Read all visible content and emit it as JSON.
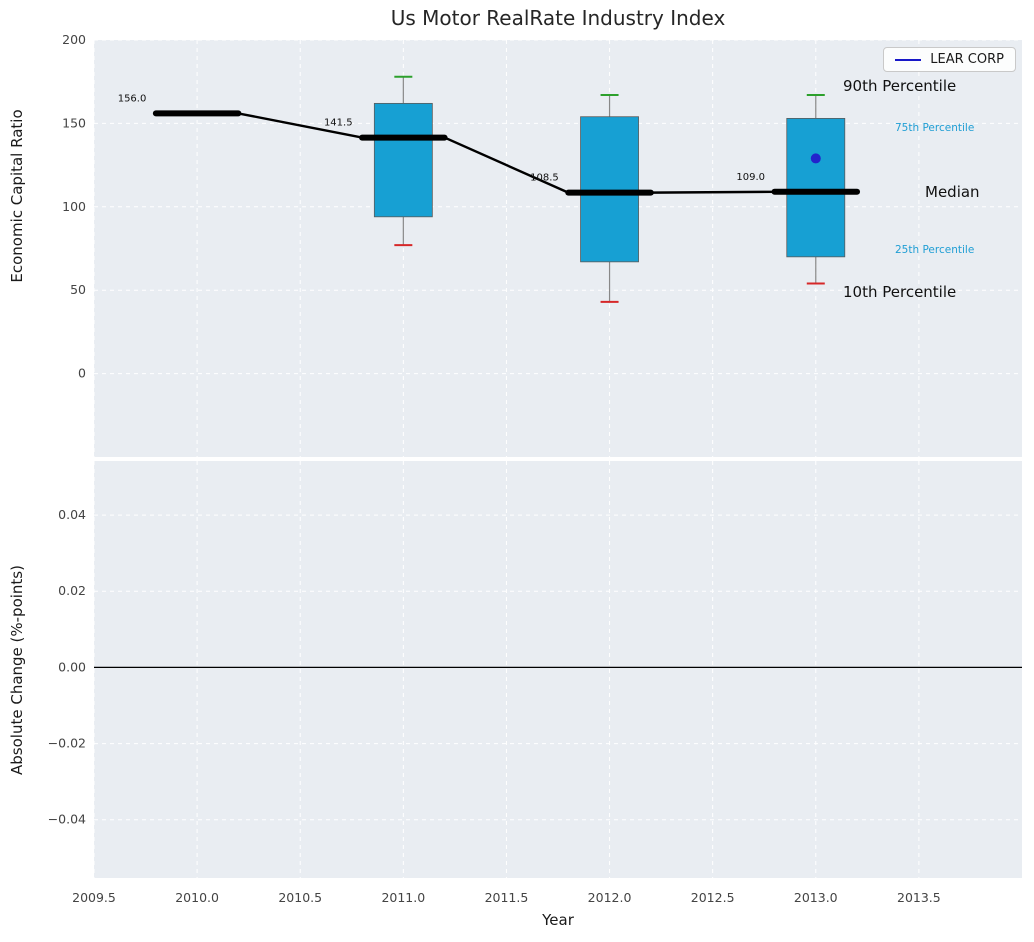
{
  "title": "Us Motor RealRate Industry Index",
  "legend": {
    "series_label": "LEAR CORP",
    "line_color": "#1818c8"
  },
  "colors": {
    "axes_bg": "#e9edf2",
    "grid": "#ffffff",
    "tick_text": "#444444",
    "label_text": "#1a1a1a",
    "box_fill": "#17a0d3",
    "box_edge": "#5a5a5a",
    "whisker": "#888888",
    "cap_high": "#2ca02c",
    "cap_low": "#d62728",
    "median_line": "#000000",
    "lear_point": "#2323cc",
    "percentile_accent": "#1f9ed4",
    "annotation_text": "#111111"
  },
  "chart_data": [
    {
      "type": "boxplot",
      "panel": "top",
      "title": "Us Motor RealRate Industry Index",
      "ylabel": "Economic Capital Ratio",
      "xlim": [
        2009.5,
        2014.0
      ],
      "ylim": [
        -50,
        200
      ],
      "grid": true,
      "legend_position": "upper right",
      "yticks": [
        {
          "v": 200,
          "label": "200"
        },
        {
          "v": 150,
          "label": "150"
        },
        {
          "v": 100,
          "label": "100"
        },
        {
          "v": 50,
          "label": "50"
        },
        {
          "v": 0,
          "label": "0"
        }
      ],
      "xticks": [
        {
          "v": 2009.5,
          "label": "2009.5"
        },
        {
          "v": 2010.0,
          "label": "2010.0"
        },
        {
          "v": 2010.5,
          "label": "2010.5"
        },
        {
          "v": 2011.0,
          "label": "2011.0"
        },
        {
          "v": 2011.5,
          "label": "2011.5"
        },
        {
          "v": 2012.0,
          "label": "2012.0"
        },
        {
          "v": 2012.5,
          "label": "2012.5"
        },
        {
          "v": 2013.0,
          "label": "2013.0"
        },
        {
          "v": 2013.5,
          "label": "2013.5"
        }
      ],
      "boxes": [
        {
          "year": 2010,
          "median": 156.0,
          "label": "156.0",
          "q1": null,
          "q3": null,
          "whisker_low": null,
          "whisker_high": null
        },
        {
          "year": 2011,
          "median": 141.5,
          "label": "141.5",
          "q1": 94,
          "q3": 162,
          "whisker_low": 77,
          "whisker_high": 178
        },
        {
          "year": 2012,
          "median": 108.5,
          "label": "108.5",
          "q1": 67,
          "q3": 154,
          "whisker_low": 43,
          "whisker_high": 167
        },
        {
          "year": 2013,
          "median": 109.0,
          "label": "109.0",
          "q1": 70,
          "q3": 153,
          "whisker_low": 54,
          "whisker_high": 167
        }
      ],
      "lear_corp": {
        "year": 2013,
        "value": 129
      },
      "percentile_labels": [
        {
          "text": "90th Percentile",
          "style": "large"
        },
        {
          "text": "75th Percentile",
          "style": "small-accent"
        },
        {
          "text": "Median",
          "style": "large"
        },
        {
          "text": "25th Percentile",
          "style": "small-accent"
        },
        {
          "text": "10th Percentile",
          "style": "large"
        }
      ]
    },
    {
      "type": "line",
      "panel": "bottom",
      "ylabel": "Absolute Change (%-points)",
      "xlabel": "Year",
      "ylim": [
        -0.0553,
        0.0542
      ],
      "yticks": [
        {
          "v": 0.04,
          "label": "0.04"
        },
        {
          "v": 0.02,
          "label": "0.02"
        },
        {
          "v": 0.0,
          "label": "0.00"
        },
        {
          "v": -0.02,
          "label": "−0.02"
        },
        {
          "v": -0.04,
          "label": "−0.04"
        }
      ],
      "zero_line": 0.0,
      "series": []
    }
  ]
}
